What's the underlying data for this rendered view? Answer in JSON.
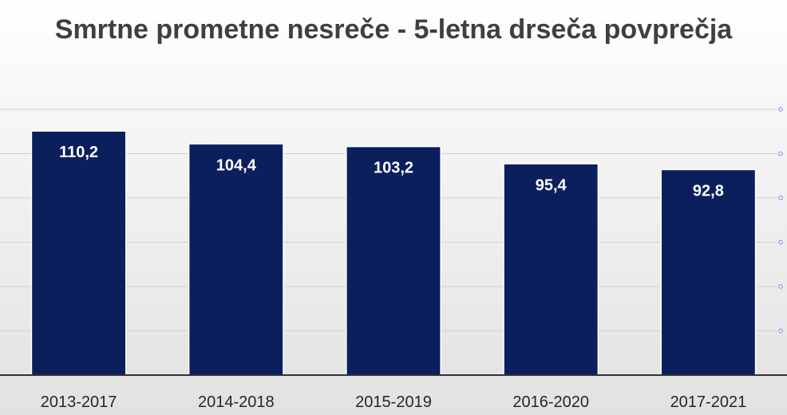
{
  "chart_data": {
    "type": "bar",
    "title": "Smrtne prometne nesreče - 5-letna drseča povprečja",
    "categories": [
      "2013-2017",
      "2014-2018",
      "2015-2019",
      "2016-2020",
      "2017-2021"
    ],
    "values": [
      110.2,
      104.4,
      103.2,
      95.4,
      92.8
    ],
    "data_labels": [
      "110,2",
      "104,4",
      "103,2",
      "95,4",
      "92,8"
    ],
    "xlabel": "",
    "ylabel": "",
    "ylim": [
      0,
      120
    ],
    "grid": true,
    "legend": "none",
    "colors": {
      "bar": "#0b1f5c",
      "bar_border": "#ffffff",
      "grid": "#d0d0d0",
      "axis": "#333333",
      "title": "#3f3f3f"
    }
  }
}
